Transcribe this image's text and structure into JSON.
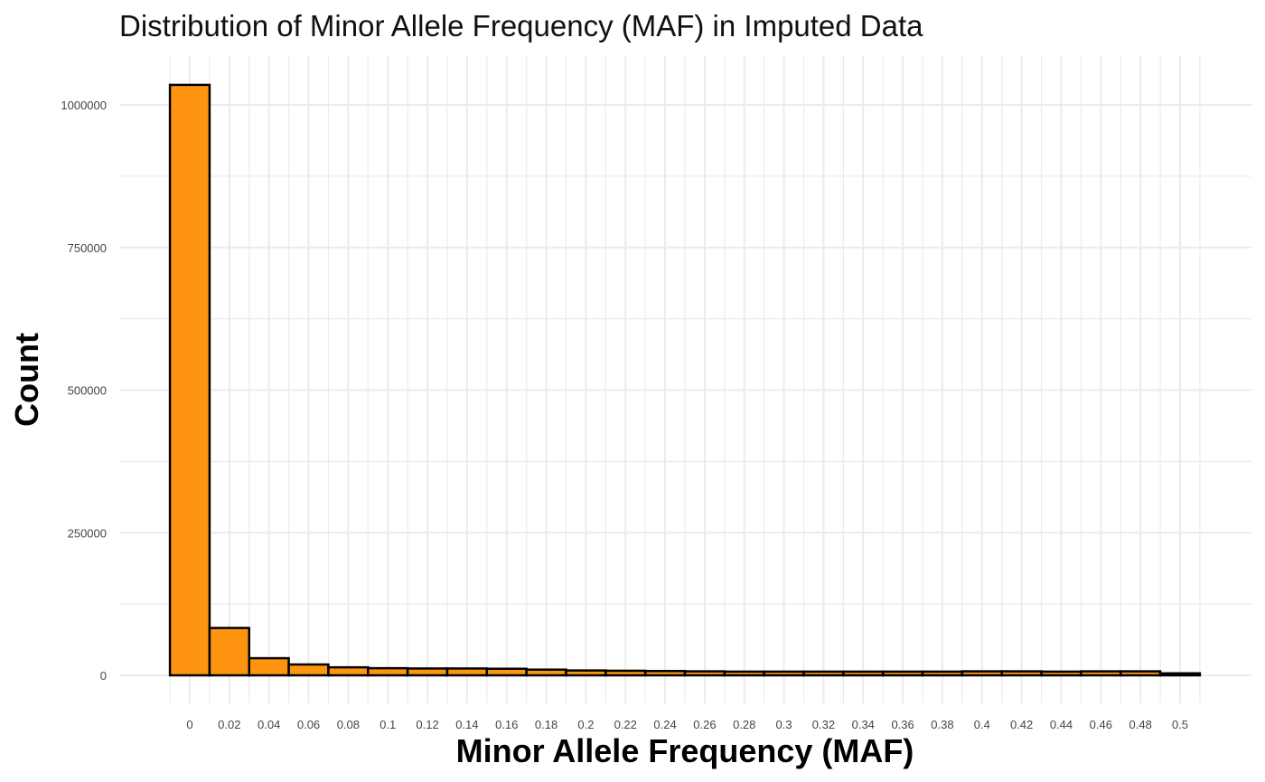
{
  "chart_data": {
    "type": "bar",
    "title": "Distribution of Minor Allele Frequency (MAF) in Imputed Data",
    "xlabel": "Minor Allele Frequency (MAF)",
    "ylabel": "Count",
    "xlim": [
      -0.01,
      0.51
    ],
    "ylim": [
      0,
      1050000
    ],
    "x_ticks": [
      "0",
      "0.02",
      "0.04",
      "0.06",
      "0.08",
      "0.1",
      "0.12",
      "0.14",
      "0.16",
      "0.18",
      "0.2",
      "0.22",
      "0.24",
      "0.26",
      "0.28",
      "0.3",
      "0.32",
      "0.34",
      "0.36",
      "0.38",
      "0.4",
      "0.42",
      "0.44",
      "0.46",
      "0.48",
      "0.5"
    ],
    "y_ticks": [
      "0",
      "250000",
      "500000",
      "750000",
      "1000000"
    ],
    "bin_width": 0.02,
    "bin_centers": [
      0,
      0.02,
      0.04,
      0.06,
      0.08,
      0.1,
      0.12,
      0.14,
      0.16,
      0.18,
      0.2,
      0.22,
      0.24,
      0.26,
      0.28,
      0.3,
      0.32,
      0.34,
      0.36,
      0.38,
      0.4,
      0.42,
      0.44,
      0.46,
      0.48,
      0.5
    ],
    "values": [
      1035000,
      83000,
      30000,
      19000,
      14000,
      12500,
      12000,
      12000,
      11500,
      10000,
      8500,
      8000,
      7500,
      7000,
      6500,
      6500,
      6500,
      6500,
      6500,
      6500,
      7000,
      7000,
      6500,
      7000,
      7000,
      3500
    ],
    "bar_fill": "#FF9411",
    "bar_stroke": "#000000",
    "grid": true,
    "legend": "none"
  }
}
